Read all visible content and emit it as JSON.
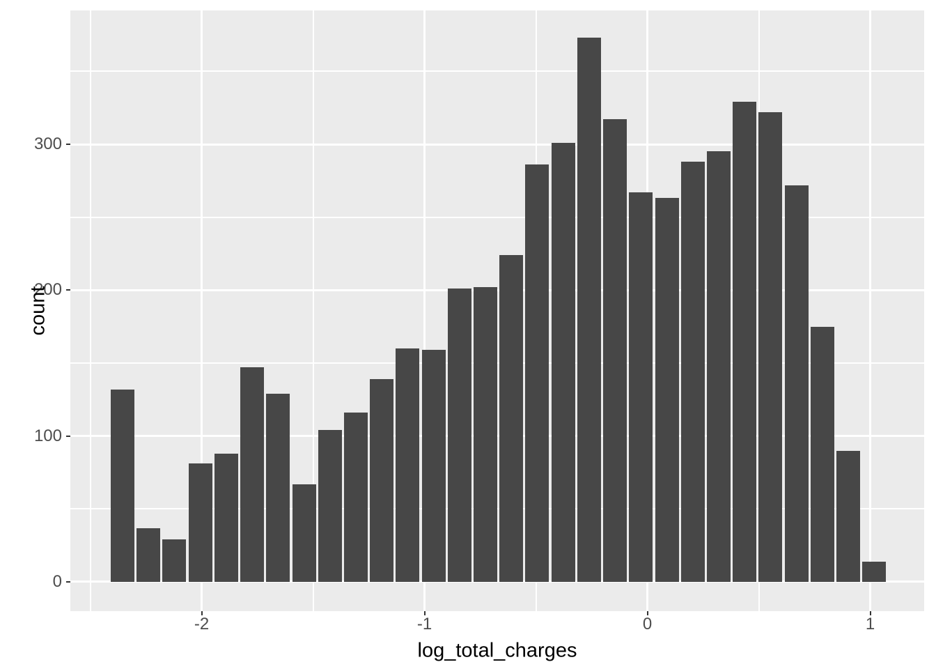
{
  "chart_data": {
    "type": "bar",
    "subtype": "histogram",
    "title": "",
    "xlabel": "log_total_charges",
    "ylabel": "count",
    "x_tick_values": [
      -2,
      -1,
      0,
      1
    ],
    "x_tick_labels": [
      "-2",
      "-1",
      "0",
      "1"
    ],
    "x_minor_ticks": [
      -2.5,
      -1.5,
      -0.5,
      0.5
    ],
    "y_tick_values": [
      0,
      100,
      200,
      300
    ],
    "y_tick_labels": [
      "0",
      "100",
      "200",
      "300"
    ],
    "y_minor_ticks": [
      50,
      150,
      250,
      350
    ],
    "xlim": [
      -2.589,
      1.242
    ],
    "ylim": [
      -20.1,
      391.7
    ],
    "bin_start": -2.413,
    "bin_width": 0.1163,
    "counts": [
      132,
      37,
      29,
      81,
      88,
      147,
      129,
      67,
      104,
      116,
      139,
      160,
      159,
      201,
      202,
      224,
      286,
      301,
      373,
      317,
      267,
      263,
      288,
      295,
      329,
      322,
      272,
      175,
      90,
      14
    ],
    "grid": "on",
    "legend": "none",
    "colors": {
      "bar": "#474747",
      "panel_bg": "#EBEBEB",
      "gridline": "#FFFFFF",
      "tick_text": "#4D4D4D",
      "title_text": "#000000",
      "tick_mark": "#333333",
      "background": "#FFFFFF"
    }
  }
}
